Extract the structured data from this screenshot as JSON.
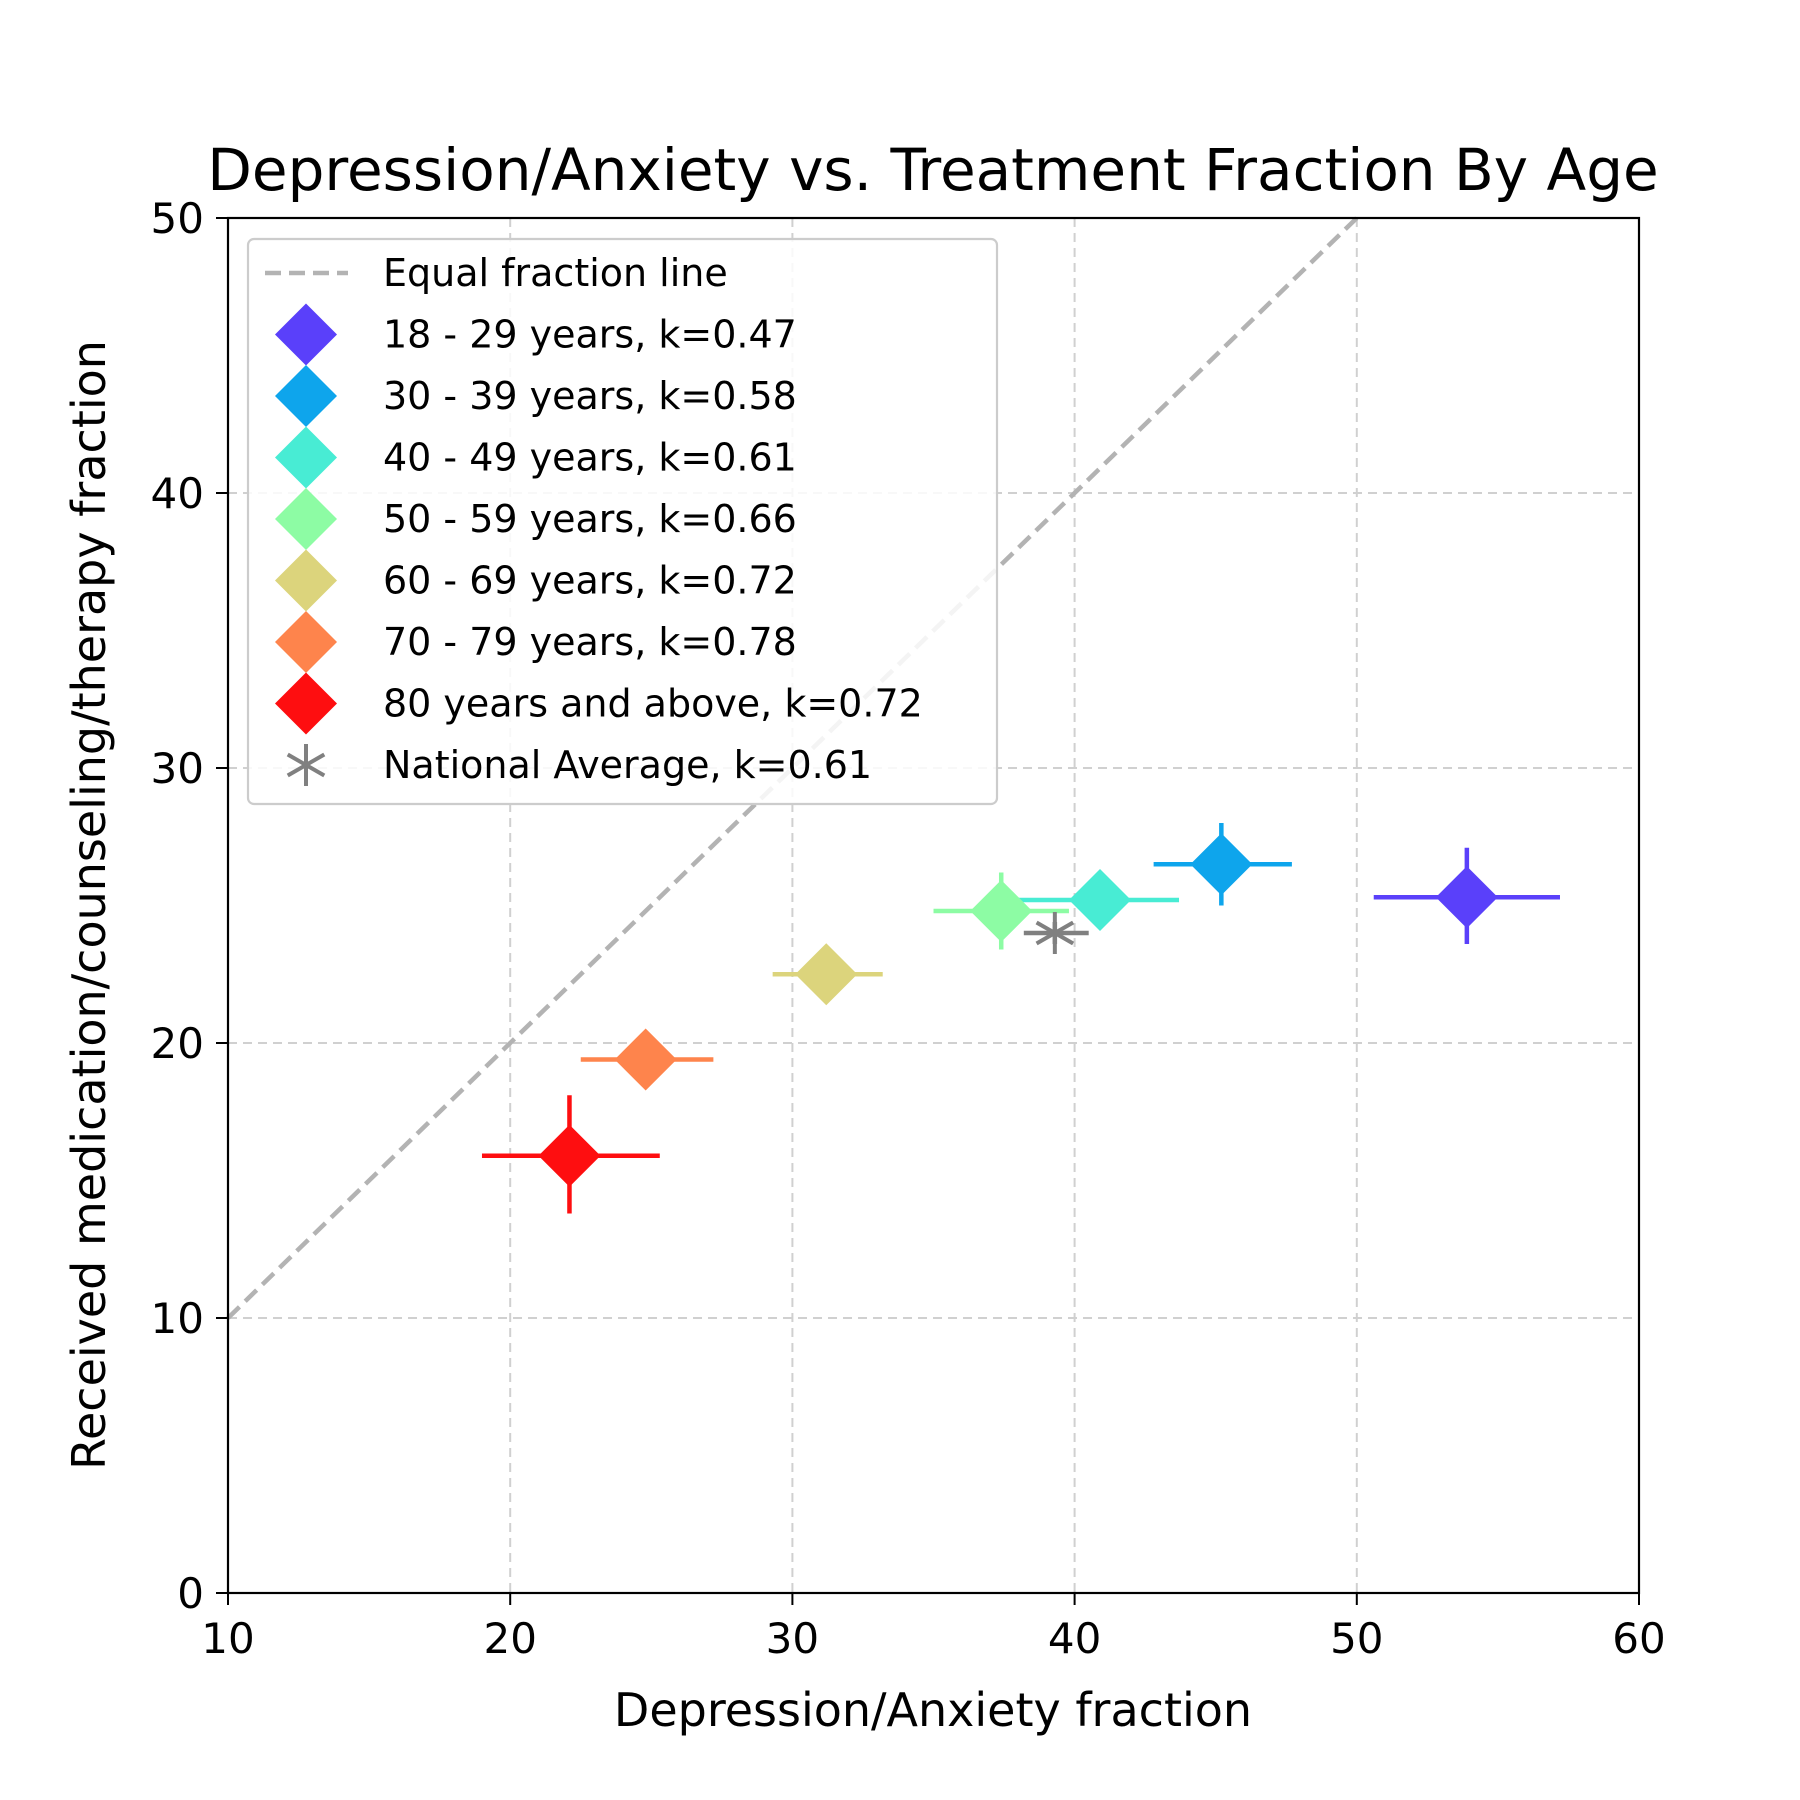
{
  "chart_data": {
    "type": "scatter",
    "title": "Depression/Anxiety vs. Treatment Fraction By Age",
    "xlabel": "Depression/Anxiety fraction",
    "ylabel": "Received medication/counseling/therapy fraction",
    "xlim": [
      10,
      60
    ],
    "ylim": [
      0,
      50
    ],
    "xticks": [
      "10",
      "20",
      "30",
      "40",
      "50",
      "60"
    ],
    "yticks": [
      "0",
      "10",
      "20",
      "30",
      "40",
      "50"
    ],
    "grid": true,
    "legend_position": "upper-left",
    "reference_line": {
      "label": "Equal fraction line",
      "x": [
        10,
        50
      ],
      "y": [
        10,
        50
      ],
      "color": "#b3b3b3",
      "style": "dashed"
    },
    "series": [
      {
        "name": "18 - 29 years, k=0.47",
        "marker": "diamond",
        "color": "#5a40fa",
        "x": 53.9,
        "y": 25.3,
        "xerr": [
          50.6,
          57.2
        ],
        "yerr": [
          23.6,
          27.1
        ]
      },
      {
        "name": "30 - 39 years, k=0.58",
        "marker": "diamond",
        "color": "#0ea5ec",
        "x": 45.2,
        "y": 26.5,
        "xerr": [
          42.8,
          47.7
        ],
        "yerr": [
          25.0,
          28.0
        ]
      },
      {
        "name": "40 - 49 years, k=0.61",
        "marker": "diamond",
        "color": "#48ecd4",
        "x": 40.9,
        "y": 25.2,
        "xerr": [
          38.0,
          43.7
        ],
        "yerr": [
          24.4,
          26.0
        ]
      },
      {
        "name": "50 - 59 years, k=0.66",
        "marker": "diamond",
        "color": "#8dfca4",
        "x": 37.4,
        "y": 24.8,
        "xerr": [
          35.0,
          39.8
        ],
        "yerr": [
          23.4,
          26.2
        ]
      },
      {
        "name": "60 - 69 years, k=0.72",
        "marker": "diamond",
        "color": "#dcd47c",
        "x": 31.2,
        "y": 22.5,
        "xerr": [
          29.3,
          33.2
        ],
        "yerr": [
          21.9,
          23.1
        ]
      },
      {
        "name": "70 - 79 years, k=0.78",
        "marker": "diamond",
        "color": "#fe844c",
        "x": 24.8,
        "y": 19.4,
        "xerr": [
          22.5,
          27.2
        ],
        "yerr": [
          18.8,
          20.0
        ]
      },
      {
        "name": "80 years and above, k=0.72",
        "marker": "diamond",
        "color": "#fe0e10",
        "x": 22.1,
        "y": 15.9,
        "xerr": [
          19.0,
          25.3
        ],
        "yerr": [
          13.8,
          18.1
        ]
      },
      {
        "name": "National Average, k=0.61",
        "marker": "star",
        "color": "#808080",
        "x": 39.3,
        "y": 24.0,
        "xerr": [
          38.2,
          40.5
        ],
        "yerr": [
          23.6,
          24.4
        ]
      }
    ]
  }
}
